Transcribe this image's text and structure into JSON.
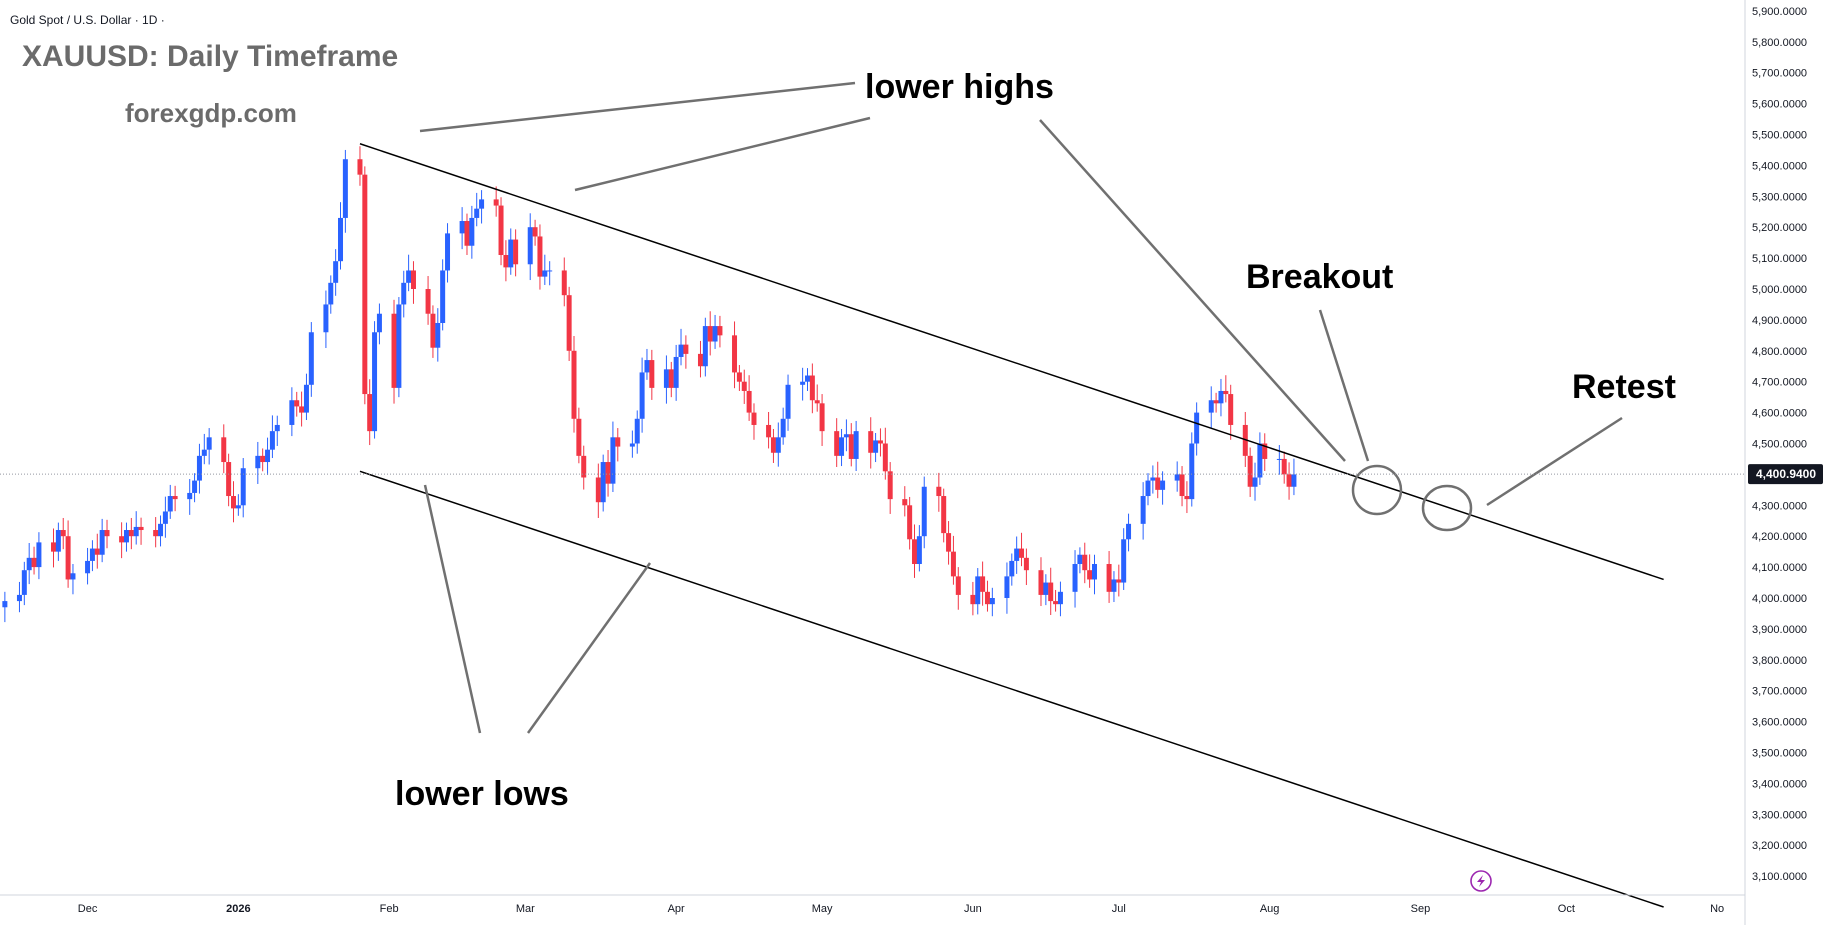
{
  "header": {
    "symbol_line": "Gold Spot / U.S. Dollar · 1D ·",
    "title": "XAUUSD: Daily Timeframe",
    "watermark": "forexgdp.com"
  },
  "annotations": {
    "lower_highs": "lower highs",
    "lower_lows": "lower lows",
    "breakout": "Breakout",
    "retest": "Retest"
  },
  "price_badge": "4,400.9400",
  "colors": {
    "up": "#2962ff",
    "down": "#f23645",
    "badge_bg": "#131722",
    "grid": "#e0e3eb",
    "line": "#000000",
    "pointer": "#707070",
    "lightning": "#9c27b0"
  },
  "icons": {
    "replay": "lightning-icon"
  },
  "chart_data": {
    "type": "candlestick",
    "title": "XAUUSD: Daily Timeframe",
    "symbol": "Gold Spot / U.S. Dollar",
    "interval": "1D",
    "ylim": [
      3000,
      5950
    ],
    "y_ticks": [
      3100,
      3200,
      3300,
      3400,
      3500,
      3600,
      3700,
      3800,
      3900,
      4000,
      4100,
      4200,
      4300,
      4400,
      4500,
      4600,
      4700,
      4800,
      4900,
      5000,
      5100,
      5200,
      5300,
      5400,
      5500,
      5600,
      5700,
      5800,
      5900
    ],
    "y_tick_labels": [
      "3,100.0000",
      "3,200.0000",
      "3,300.0000",
      "3,400.0000",
      "3,500.0000",
      "3,600.0000",
      "3,700.0000",
      "3,800.0000",
      "3,900.0000",
      "4,000.0000",
      "4,100.0000",
      "4,200.0000",
      "4,300.0000",
      "4,400.0000",
      "4,500.0000",
      "4,600.0000",
      "4,700.0000",
      "4,800.0000",
      "4,900.0000",
      "5,000.0000",
      "5,100.0000",
      "5,200.0000",
      "5,300.0000",
      "5,400.0000",
      "5,500.0000",
      "5,600.0000",
      "5,700.0000",
      "5,800.0000",
      "5,900.0000"
    ],
    "x_start": "2025-11-13",
    "x_end": "2026-11-02",
    "x_ticks": [
      {
        "date": "2025-12-01",
        "label": "Dec",
        "bold": false
      },
      {
        "date": "2026-01-01",
        "label": "2026",
        "bold": true
      },
      {
        "date": "2026-02-01",
        "label": "Feb",
        "bold": false
      },
      {
        "date": "2026-03-01",
        "label": "Mar",
        "bold": false
      },
      {
        "date": "2026-04-01",
        "label": "Apr",
        "bold": false
      },
      {
        "date": "2026-05-01",
        "label": "May",
        "bold": false
      },
      {
        "date": "2026-06-01",
        "label": "Jun",
        "bold": false
      },
      {
        "date": "2026-07-01",
        "label": "Jul",
        "bold": false
      },
      {
        "date": "2026-08-01",
        "label": "Aug",
        "bold": false
      },
      {
        "date": "2026-09-01",
        "label": "Sep",
        "bold": false
      },
      {
        "date": "2026-10-01",
        "label": "Oct",
        "bold": false
      },
      {
        "date": "2026-11-01",
        "label": "No",
        "bold": false
      }
    ],
    "current_price": 4400.94,
    "candle_start": "2025-11-14",
    "closes": [
      3990,
      4010,
      4090,
      4130,
      4100,
      4180,
      4150,
      4220,
      4200,
      4060,
      4080,
      4120,
      4160,
      4140,
      4220,
      4200,
      4180,
      4220,
      4200,
      4230,
      4220,
      4200,
      4240,
      4280,
      4330,
      4320,
      4340,
      4380,
      4460,
      4480,
      4520,
      4440,
      4330,
      4290,
      4300,
      4420,
      4460,
      4440,
      4480,
      4540,
      4560,
      4640,
      4620,
      4600,
      4690,
      4860,
      4950,
      5020,
      5090,
      5230,
      5420,
      5370,
      4660,
      4540,
      4860,
      4920,
      4680,
      4950,
      5020,
      5060,
      5000,
      4920,
      4810,
      4890,
      5060,
      5180,
      5220,
      5140,
      5230,
      5260,
      5290,
      5270,
      5110,
      5070,
      5160,
      5080,
      5200,
      5170,
      5040,
      5060,
      5060,
      4980,
      4800,
      4580,
      4460,
      4390,
      4310,
      4440,
      4370,
      4520,
      4490,
      4500,
      4580,
      4730,
      4770,
      4680,
      4740,
      4680,
      4780,
      4820,
      4790,
      4750,
      4880,
      4830,
      4880,
      4850,
      4730,
      4700,
      4670,
      4600,
      4560,
      4520,
      4470,
      4520,
      4580,
      4690,
      4700,
      4720,
      4640,
      4630,
      4540,
      4460,
      4520,
      4530,
      4450,
      4540,
      4470,
      4510,
      4500,
      4410,
      4320,
      4300,
      4190,
      4110,
      4200,
      4360,
      4330,
      4210,
      4150,
      4070,
      4010,
      3980,
      4070,
      4020,
      3980,
      4000,
      4070,
      4120,
      4160,
      4130,
      4090,
      4010,
      4050,
      3990,
      3980,
      4020,
      4110,
      4140,
      4090,
      4060,
      4110,
      4020,
      4060,
      4050,
      4190,
      4240,
      4330,
      4380,
      4390,
      4350,
      4380,
      4400,
      4330,
      4320,
      4500,
      4600,
      4640,
      4630,
      4670,
      4660,
      4560,
      4460,
      4360,
      4390,
      4500,
      4450,
      4450,
      4400,
      4360,
      4400
    ],
    "series": [
      {
        "name": "Upper channel line",
        "points": [
          [
            "2026-01-26",
            5470
          ],
          [
            "2026-10-21",
            4060
          ]
        ]
      },
      {
        "name": "Lower channel line",
        "points": [
          [
            "2026-01-26",
            4410
          ],
          [
            "2026-10-21",
            3000
          ]
        ]
      }
    ],
    "grid": false,
    "legend": "none"
  }
}
